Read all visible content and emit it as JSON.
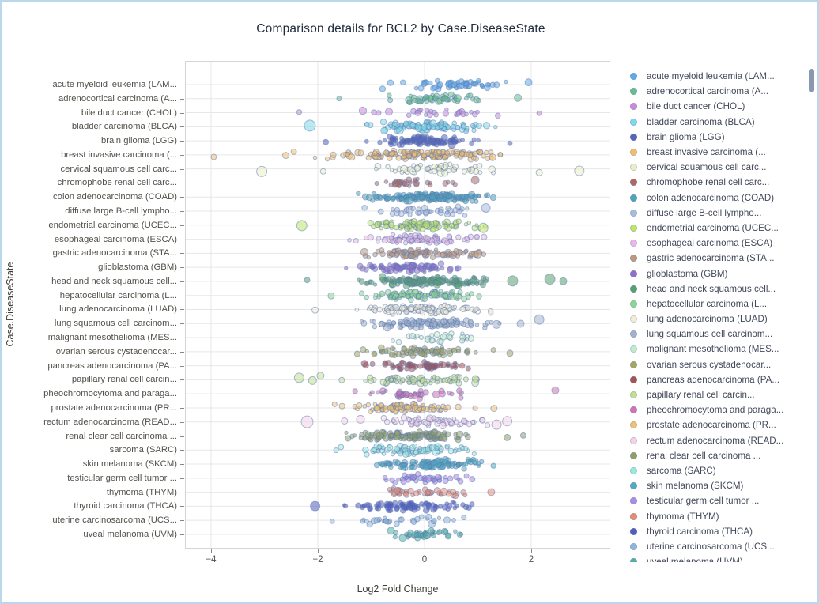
{
  "title": "Comparison details for BCL2 by Case.DiseaseState",
  "colors": {
    "page_border": "#b9d8ec",
    "grid": "#e7e7e7",
    "plot_border": "#d4d4d4",
    "point_stroke": "rgba(90,120,180,0.5)",
    "scrollbar_thumb": "#8997b1",
    "title_text": "#1f2a3a",
    "axis_text": "#54504b"
  },
  "legend": {
    "has_scrollbar": true
  },
  "chart_data": {
    "type": "scatter",
    "subtype": "jittered-strip-plot",
    "title": "Comparison details for BCL2 by Case.DiseaseState",
    "xlabel": "Log2 Fold Change",
    "ylabel": "Case.DiseaseState",
    "xlim": [
      -4.5,
      3.5
    ],
    "x_ticks": [
      -4,
      -2,
      0,
      2
    ],
    "grid": true,
    "legend_position": "right",
    "point_fill_opacity": 0.55,
    "series": [
      {
        "label": "acute myeloid leukemia (LAM...",
        "color": "#5EA9E6",
        "n": 55,
        "center": 0.6,
        "spread": 0.5,
        "min": -1.05,
        "max": 1.6,
        "outliers": [
          {
            "x": 1.95,
            "r": 4.5
          }
        ]
      },
      {
        "label": "adrenocortical carcinoma (A...",
        "color": "#67BE8A",
        "n": 50,
        "center": 0.2,
        "spread": 0.5,
        "min": -1.35,
        "max": 1.4,
        "outliers": [
          {
            "x": 1.75,
            "r": 4.5
          },
          {
            "x": -1.6,
            "r": 3
          }
        ]
      },
      {
        "label": "bile duct cancer (CHOL)",
        "color": "#C98BD8",
        "n": 28,
        "center": 0.1,
        "spread": 0.65,
        "min": -1.6,
        "max": 1.9,
        "outliers": [
          {
            "x": -2.35,
            "r": 3.2
          },
          {
            "x": -0.95,
            "r": 3.2
          },
          {
            "x": 2.15,
            "r": 3
          }
        ]
      },
      {
        "label": "bladder carcinoma (BLCA)",
        "color": "#82D8E6",
        "n": 110,
        "center": 0.05,
        "spread": 0.5,
        "min": -1.45,
        "max": 1.6,
        "outliers": [
          {
            "x": -2.15,
            "r": 7
          }
        ]
      },
      {
        "label": "brain glioma (LGG)",
        "color": "#5A63B8",
        "n": 110,
        "center": 0,
        "spread": 0.4,
        "min": -1.35,
        "max": 1.35,
        "outliers": [
          {
            "x": -1.85,
            "r": 3.5
          },
          {
            "x": 1.6,
            "r": 3
          }
        ]
      },
      {
        "label": "breast invasive carcinoma (...",
        "color": "#F3BE6B",
        "n": 160,
        "center": 0,
        "spread": 0.7,
        "min": -2.3,
        "max": 1.8,
        "outliers": [
          {
            "x": -3.95,
            "r": 3.5
          },
          {
            "x": -2.6,
            "r": 4
          },
          {
            "x": -2.45,
            "r": 3.5
          }
        ]
      },
      {
        "label": "cervical squamous cell carc...",
        "color": "#EDEEC5",
        "n": 55,
        "center": 0.2,
        "spread": 0.5,
        "min": -1.15,
        "max": 1.7,
        "outliers": [
          {
            "x": -3.05,
            "r": 6.5
          },
          {
            "x": 2.9,
            "r": 6
          },
          {
            "x": 2.15,
            "r": 4
          },
          {
            "x": -1.9,
            "r": 3.5
          }
        ]
      },
      {
        "label": "chromophobe renal cell carc...",
        "color": "#AE6A62",
        "n": 30,
        "center": -0.15,
        "spread": 0.45,
        "min": -1.35,
        "max": 0.75,
        "outliers": [
          {
            "x": 0.95,
            "r": 5
          }
        ]
      },
      {
        "label": "colon adenocarcinoma (COAD)",
        "color": "#51A3B6",
        "n": 150,
        "center": 0.1,
        "spread": 0.5,
        "min": -1.35,
        "max": 1.7,
        "outliers": []
      },
      {
        "label": "diffuse large B-cell lympho...",
        "color": "#ABBCD8",
        "n": 40,
        "center": 0,
        "spread": 0.5,
        "min": -1.3,
        "max": 0.9,
        "outliers": [
          {
            "x": 1.15,
            "r": 5.5
          }
        ]
      },
      {
        "label": "endometrial carcinoma (UCEC...",
        "color": "#BEE468",
        "n": 100,
        "center": 0,
        "spread": 0.5,
        "min": -1.45,
        "max": 1.5,
        "outliers": [
          {
            "x": -2.3,
            "r": 6.5
          },
          {
            "x": 1.1,
            "r": 6
          }
        ]
      },
      {
        "label": "esophageal carcinoma (ESCA)",
        "color": "#E9B8E4",
        "n": 85,
        "center": 0,
        "spread": 0.5,
        "min": -1.55,
        "max": 1.3,
        "outliers": []
      },
      {
        "label": "gastric adenocarcinoma (STA...",
        "color": "#BE9878",
        "n": 90,
        "center": 0,
        "spread": 0.5,
        "min": -1.7,
        "max": 1.15,
        "outliers": [
          {
            "x": 1.0,
            "r": 5
          }
        ]
      },
      {
        "label": "glioblastoma (GBM)",
        "color": "#8F70C8",
        "n": 80,
        "center": -0.35,
        "spread": 0.45,
        "min": -1.65,
        "max": 0.85,
        "outliers": []
      },
      {
        "label": "head and neck squamous cell...",
        "color": "#5AA06E",
        "n": 130,
        "center": 0.1,
        "spread": 0.55,
        "min": -1.55,
        "max": 1.35,
        "outliers": [
          {
            "x": 1.65,
            "r": 6.5
          },
          {
            "x": 2.35,
            "r": 6.5
          },
          {
            "x": 2.6,
            "r": 4.5
          },
          {
            "x": -2.2,
            "r": 3.5
          }
        ]
      },
      {
        "label": "hepatocellular carcinoma (L...",
        "color": "#8CD690",
        "n": 100,
        "center": 0,
        "spread": 0.5,
        "min": -1.5,
        "max": 1.45,
        "outliers": [
          {
            "x": -1.75,
            "r": 4
          }
        ]
      },
      {
        "label": "lung adenocarcinoma (LUAD)",
        "color": "#F4ECD4",
        "n": 110,
        "center": -0.1,
        "spread": 0.55,
        "min": -1.65,
        "max": 1.45,
        "outliers": [
          {
            "x": -2.05,
            "r": 4
          }
        ]
      },
      {
        "label": "lung squamous cell carcinom...",
        "color": "#A2B2C8",
        "n": 110,
        "center": 0,
        "spread": 0.55,
        "min": -1.65,
        "max": 1.55,
        "outliers": [
          {
            "x": 1.8,
            "r": 4.5
          },
          {
            "x": 2.15,
            "r": 6
          },
          {
            "x": 1.35,
            "r": 5
          }
        ]
      },
      {
        "label": "malignant mesothelioma (MES...",
        "color": "#C2ECCA",
        "n": 28,
        "center": 0.1,
        "spread": 0.55,
        "min": -0.95,
        "max": 1.45,
        "outliers": []
      },
      {
        "label": "ovarian serous cystadenocar...",
        "color": "#A6A660",
        "n": 85,
        "center": 0,
        "spread": 0.55,
        "min": -1.65,
        "max": 1.35,
        "outliers": [
          {
            "x": 1.6,
            "r": 4
          }
        ]
      },
      {
        "label": "pancreas adenocarcinoma (PA...",
        "color": "#A65252",
        "n": 65,
        "center": -0.1,
        "spread": 0.45,
        "min": -1.55,
        "max": 0.95,
        "outliers": []
      },
      {
        "label": "papillary renal cell carcin...",
        "color": "#C4DE92",
        "n": 70,
        "center": -0.2,
        "spread": 0.55,
        "min": -1.6,
        "max": 1.0,
        "outliers": [
          {
            "x": -2.35,
            "r": 6
          },
          {
            "x": -2.1,
            "r": 5
          },
          {
            "x": -1.95,
            "r": 4.5
          },
          {
            "x": 0.95,
            "r": 4.5
          }
        ]
      },
      {
        "label": "pheochromocytoma and paraga...",
        "color": "#D073B2",
        "n": 45,
        "center": -0.2,
        "spread": 0.5,
        "min": -1.35,
        "max": 1.05,
        "outliers": [
          {
            "x": 2.45,
            "r": 4.5
          }
        ]
      },
      {
        "label": "prostate adenocarcinoma (PR...",
        "color": "#F0C172",
        "n": 90,
        "center": -0.4,
        "spread": 0.5,
        "min": -1.95,
        "max": 0.95,
        "outliers": [
          {
            "x": 1.3,
            "r": 4
          }
        ]
      },
      {
        "label": "rectum adenocarcinoma (READ...",
        "color": "#F5D2E6",
        "n": 60,
        "center": 0.2,
        "spread": 0.5,
        "min": -1.05,
        "max": 1.2,
        "outliers": [
          {
            "x": -2.2,
            "r": 7.5
          },
          {
            "x": -1.5,
            "r": 4
          },
          {
            "x": 1.35,
            "r": 6
          },
          {
            "x": 1.55,
            "r": 6
          },
          {
            "x": -1.2,
            "r": 5
          }
        ]
      },
      {
        "label": "renal clear cell carcinoma ...",
        "color": "#929E66",
        "n": 120,
        "center": -0.3,
        "spread": 0.5,
        "min": -1.65,
        "max": 1.05,
        "outliers": [
          {
            "x": 1.55,
            "r": 4
          },
          {
            "x": 1.85,
            "r": 3.5
          }
        ]
      },
      {
        "label": "sarcoma (SARC)",
        "color": "#9AE8DE",
        "n": 85,
        "center": -0.2,
        "spread": 0.55,
        "min": -1.85,
        "max": 1.4,
        "outliers": []
      },
      {
        "label": "skin melanoma (SKCM)",
        "color": "#52AABE",
        "n": 120,
        "center": 0.1,
        "spread": 0.5,
        "min": -1.25,
        "max": 1.65,
        "outliers": []
      },
      {
        "label": "testicular germ cell tumor ...",
        "color": "#AB8DE2",
        "n": 45,
        "center": 0,
        "spread": 0.5,
        "min": -1.35,
        "max": 1.2,
        "outliers": []
      },
      {
        "label": "thymoma (THYM)",
        "color": "#E78B72",
        "n": 45,
        "center": 0,
        "spread": 0.5,
        "min": -1.8,
        "max": 1.15,
        "outliers": [
          {
            "x": 1.25,
            "r": 4.5
          }
        ]
      },
      {
        "label": "thyroid carcinoma (THCA)",
        "color": "#545CBE",
        "n": 90,
        "center": -0.3,
        "spread": 0.5,
        "min": -1.9,
        "max": 1.05,
        "outliers": [
          {
            "x": -2.05,
            "r": 6
          }
        ]
      },
      {
        "label": "uterine carcinosarcoma (UCS...",
        "color": "#92B6D8",
        "n": 32,
        "center": -0.4,
        "spread": 0.55,
        "min": -1.9,
        "max": 0.9,
        "outliers": []
      },
      {
        "label": "uveal melanoma (UVM)",
        "color": "#52B0A0",
        "n": 40,
        "center": 0,
        "spread": 0.3,
        "min": -0.65,
        "max": 0.75,
        "outliers": []
      }
    ]
  }
}
